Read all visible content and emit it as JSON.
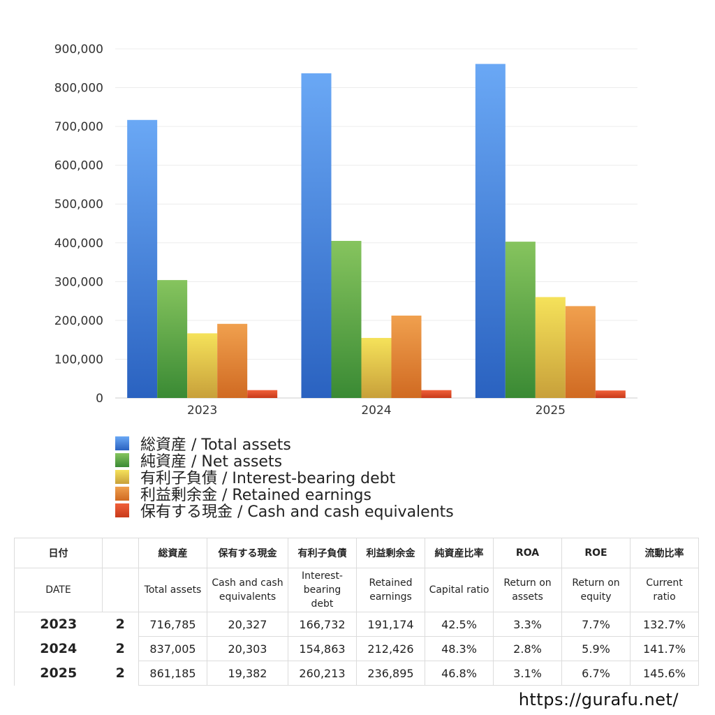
{
  "chart_data": {
    "type": "bar",
    "categories": [
      "2023",
      "2024",
      "2025"
    ],
    "series": [
      {
        "name": "総資産 / Total assets",
        "values": [
          716785,
          837005,
          861185
        ],
        "color": "#4a86e0"
      },
      {
        "name": "純資産 / Net assets",
        "values": [
          304000,
          405000,
          403000
        ],
        "color": "#5aa84a"
      },
      {
        "name": "有利子負債 / Interest-bearing debt",
        "values": [
          166732,
          154863,
          260213
        ],
        "color": "#e8c84a"
      },
      {
        "name": "利益剰余金 / Retained earnings",
        "values": [
          191174,
          212426,
          236895
        ],
        "color": "#e8883a"
      },
      {
        "name": "保有する現金 /  Cash and cash equivalents",
        "values": [
          20327,
          20303,
          19382
        ],
        "color": "#e04a2a"
      }
    ],
    "yticks": [
      "0",
      "100,000",
      "200,000",
      "300,000",
      "400,000",
      "500,000",
      "600,000",
      "700,000",
      "800,000",
      "900,000"
    ],
    "ylim": [
      0,
      900000
    ],
    "grid": true,
    "legend_position": "bottom-left"
  },
  "table": {
    "header_jp": [
      "日付",
      "",
      "総資産",
      "保有する現金",
      "有利子負債",
      "利益剰余金",
      "純資産比率",
      "ROA",
      "ROE",
      "流動比率"
    ],
    "header_en": [
      "DATE",
      "",
      "Total assets",
      "Cash and cash equivalents",
      "Interest-bearing debt",
      "Retained earnings",
      "Capital ratio",
      "Return on assets",
      "Return on equity",
      "Current ratio"
    ],
    "rows": [
      [
        "2023",
        "2",
        "716,785",
        "20,327",
        "166,732",
        "191,174",
        "42.5%",
        "3.3%",
        "7.7%",
        "132.7%"
      ],
      [
        "2024",
        "2",
        "837,005",
        "20,303",
        "154,863",
        "212,426",
        "48.3%",
        "2.8%",
        "5.9%",
        "141.7%"
      ],
      [
        "2025",
        "2",
        "861,185",
        "19,382",
        "260,213",
        "236,895",
        "46.8%",
        "3.1%",
        "6.7%",
        "145.6%"
      ]
    ]
  },
  "footer": {
    "url": "https://gurafu.net/"
  }
}
